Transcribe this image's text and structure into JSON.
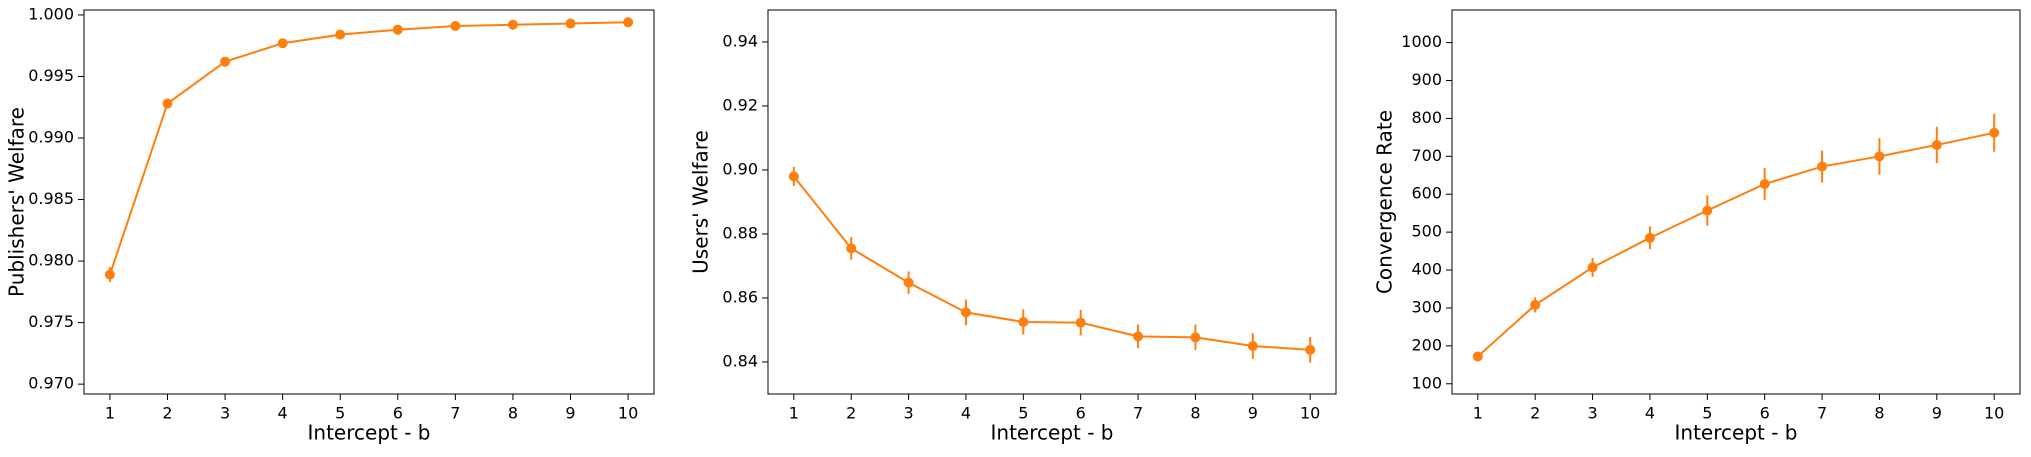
{
  "chart_data": [
    {
      "type": "line",
      "x_label": "Intercept - b",
      "y_label": "Publishers' Welfare",
      "color": "#ff7f0e",
      "x": [
        1,
        2,
        3,
        4,
        5,
        6,
        7,
        8,
        9,
        10
      ],
      "values": [
        0.9789,
        0.9928,
        0.9962,
        0.9977,
        0.9984,
        0.9988,
        0.9991,
        0.9992,
        0.9993,
        0.9994
      ],
      "errors": [
        0.0006,
        0.0002,
        0.0002,
        0.0002,
        0.0002,
        0.0002,
        0.0002,
        0.0002,
        0.0002,
        0.0002
      ],
      "xlim": [
        0.55,
        10.45
      ],
      "xticks": [
        1,
        2,
        3,
        4,
        5,
        6,
        7,
        8,
        9,
        10
      ],
      "ylim": [
        0.9692,
        1.0004
      ],
      "yticks": [
        {
          "value": 0.97,
          "label": "0.970"
        },
        0.975,
        {
          "value": 0.98,
          "label": "0.980"
        },
        0.985,
        {
          "value": 0.99,
          "label": "0.990"
        },
        0.995,
        {
          "value": 1.0,
          "label": "1.000"
        }
      ]
    },
    {
      "type": "line",
      "x_label": "Intercept - b",
      "y_label": "Users' Welfare",
      "color": "#ff7f0e",
      "x": [
        1,
        2,
        3,
        4,
        5,
        6,
        7,
        8,
        9,
        10
      ],
      "values": [
        0.898,
        0.8755,
        0.8648,
        0.8555,
        0.8525,
        0.8523,
        0.848,
        0.8477,
        0.845,
        0.8438
      ],
      "errors": [
        0.003,
        0.0035,
        0.0035,
        0.004,
        0.004,
        0.004,
        0.0037,
        0.004,
        0.004,
        0.004
      ],
      "xlim": [
        0.55,
        10.45
      ],
      "xticks": [
        1,
        2,
        3,
        4,
        5,
        6,
        7,
        8,
        9,
        10
      ],
      "ylim": [
        0.83,
        0.95
      ],
      "yticks": [
        0.84,
        0.86,
        0.88,
        {
          "value": 0.9,
          "label": "0.90"
        },
        0.92,
        0.94
      ]
    },
    {
      "type": "line",
      "x_label": "Intercept - b",
      "y_label": "Convergence Rate",
      "color": "#ff7f0e",
      "x": [
        1,
        2,
        3,
        4,
        5,
        6,
        7,
        8,
        9,
        10
      ],
      "values": [
        172,
        308,
        407,
        485,
        557,
        627,
        673,
        700,
        730,
        762
      ],
      "errors": [
        12,
        20,
        25,
        30,
        40,
        42,
        42,
        48,
        48,
        50
      ],
      "xlim": [
        0.55,
        10.45
      ],
      "xticks": [
        1,
        2,
        3,
        4,
        5,
        6,
        7,
        8,
        9,
        10
      ],
      "ylim": [
        73,
        1086
      ],
      "yticks": [
        100,
        200,
        300,
        400,
        500,
        600,
        700,
        800,
        900,
        1000
      ]
    }
  ]
}
